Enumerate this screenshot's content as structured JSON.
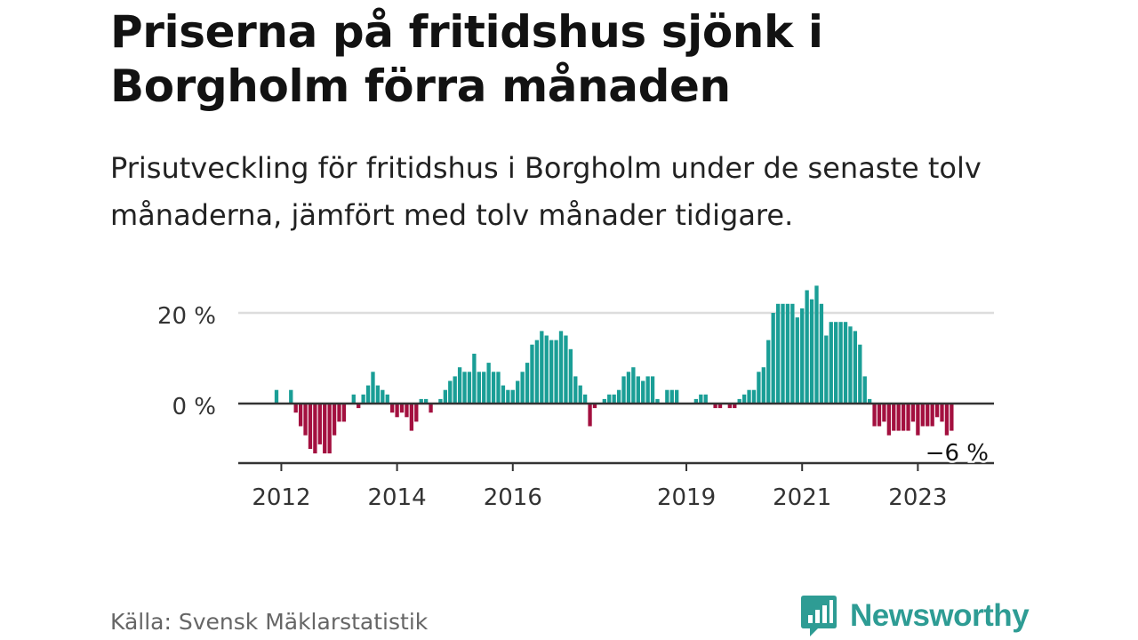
{
  "header": {
    "title": "Priserna på fritidshus sjönk i Borgholm förra månaden",
    "subtitle": "Prisutveckling för fritidshus i Borgholm under de senaste tolv månaderna, jämfört med tolv månader tidigare."
  },
  "footer": {
    "source": "Källa: Svensk Mäklarstatistik",
    "brand": "Newsworthy"
  },
  "colors": {
    "positive": "#1a9e96",
    "negative": "#a3103f",
    "gridline": "#dddddd",
    "zeroline": "#333333",
    "axis": "#333333",
    "brand": "#2e9c94"
  },
  "chart_data": {
    "type": "bar",
    "title": "Priserna på fritidshus sjönk i Borgholm förra månaden",
    "xlabel": "",
    "ylabel": "",
    "unit": "%",
    "start": "2011-12",
    "yticks": [
      0,
      20
    ],
    "ytick_labels": [
      "0 %",
      "20 %"
    ],
    "xticks": [
      {
        "date": "2012-01",
        "label": "2012"
      },
      {
        "date": "2014-01",
        "label": "2014"
      },
      {
        "date": "2016-01",
        "label": "2016"
      },
      {
        "date": "2019-01",
        "label": "2019"
      },
      {
        "date": "2021-01",
        "label": "2021"
      },
      {
        "date": "2023-01",
        "label": "2023"
      }
    ],
    "last_value_label": "−6 %",
    "values": [
      3,
      0,
      0,
      3,
      -2,
      -5,
      -7,
      -10,
      -11,
      -9,
      -11,
      -11,
      -7,
      -4,
      -4,
      0,
      2,
      -1,
      2,
      4,
      7,
      4,
      3,
      2,
      -2,
      -3,
      -2,
      -3,
      -6,
      -4,
      1,
      1,
      -2,
      0,
      1,
      3,
      5,
      6,
      8,
      7,
      7,
      11,
      7,
      7,
      9,
      7,
      7,
      4,
      3,
      3,
      5,
      7,
      9,
      13,
      14,
      16,
      15,
      14,
      14,
      16,
      15,
      12,
      6,
      4,
      2,
      -5,
      -1,
      0,
      1,
      2,
      2,
      3,
      6,
      7,
      8,
      6,
      5,
      6,
      6,
      1,
      0,
      3,
      3,
      3,
      0,
      0,
      0,
      1,
      2,
      2,
      0,
      -1,
      -1,
      0,
      -1,
      -1,
      1,
      2,
      3,
      3,
      7,
      8,
      14,
      20,
      22,
      22,
      22,
      22,
      19,
      21,
      25,
      23,
      26,
      22,
      15,
      18,
      18,
      18,
      18,
      17,
      16,
      13,
      6,
      1,
      -5,
      -5,
      -4,
      -7,
      -6,
      -6,
      -6,
      -6,
      -4,
      -7,
      -5,
      -5,
      -5,
      -3,
      -4,
      -7,
      -6
    ]
  }
}
